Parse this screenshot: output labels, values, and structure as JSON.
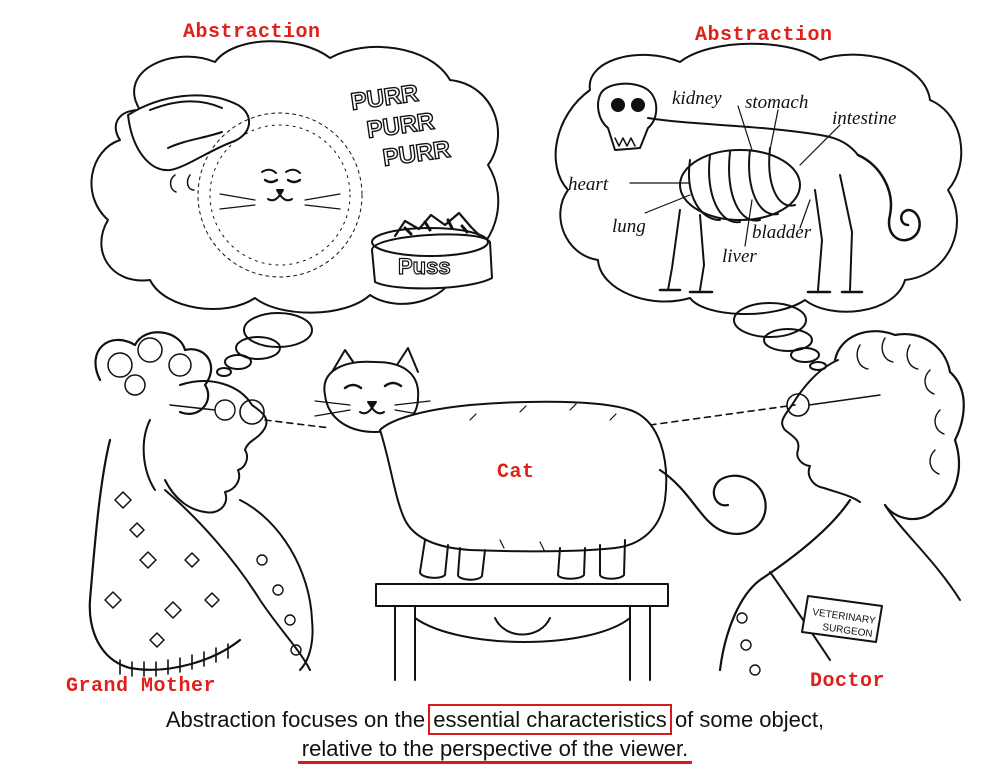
{
  "labels": {
    "abstraction_left": "Abstraction",
    "abstraction_right": "Abstraction",
    "cat": "Cat",
    "grandmother": "Grand Mother",
    "doctor": "Doctor"
  },
  "thought_left": {
    "purr": [
      "PURR",
      "PURR",
      "PURR"
    ],
    "bowl": "Puss"
  },
  "thought_right": {
    "organs": {
      "kidney": "kidney",
      "stomach": "stomach",
      "intestine": "intestine",
      "heart": "heart",
      "lung": "lung",
      "bladder": "bladder",
      "liver": "liver"
    }
  },
  "badge": {
    "line1": "VETERINARY",
    "line2": "SURGEON"
  },
  "caption": {
    "part1": "Abstraction focuses on the",
    "highlight": "essential characteristics",
    "part2": "of some object,",
    "line2": "relative to the perspective of the viewer."
  },
  "colors": {
    "label_red": "#e0201a",
    "ink": "#111111"
  }
}
